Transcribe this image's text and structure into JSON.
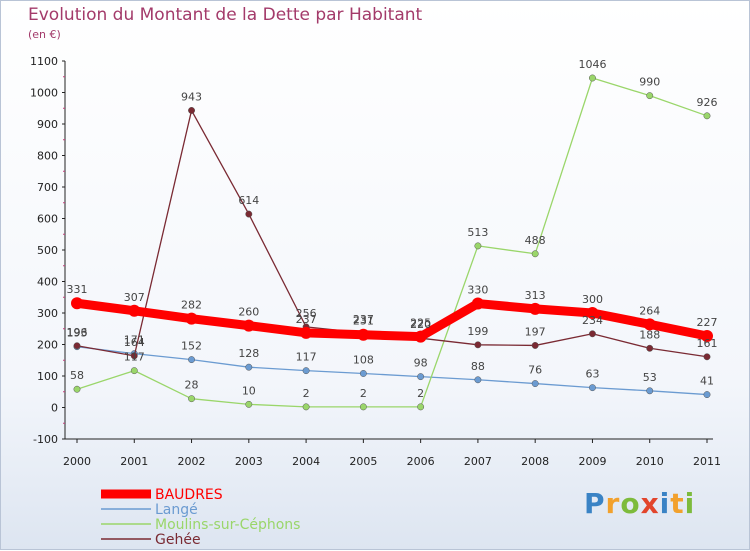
{
  "title": "Evolution du Montant de la Dette par Habitant",
  "unit": "(en €)",
  "logo": {
    "text": "Proxiti",
    "colors": [
      "#3a83c5",
      "#f2a12d",
      "#7dbb3c",
      "#e2452c",
      "#3a83c5",
      "#f2a12d",
      "#7dbb3c"
    ]
  },
  "chart_data": {
    "type": "line",
    "title": "Evolution du Montant de la Dette par Habitant",
    "ylabel": "(en €)",
    "xlabel": "",
    "categories": [
      "2000",
      "2001",
      "2002",
      "2003",
      "2004",
      "2005",
      "2006",
      "2007",
      "2008",
      "2009",
      "2010",
      "2011"
    ],
    "ylim": [
      -100,
      1100
    ],
    "yticks": [
      "-100",
      "0",
      "100",
      "200",
      "300",
      "400",
      "500",
      "600",
      "700",
      "800",
      "900",
      "1000",
      "1100"
    ],
    "grid": false,
    "legend": "bottom-left",
    "series": [
      {
        "name": "BAUDRES",
        "color": "#ff0000",
        "values": [
          331,
          307,
          282,
          260,
          237,
          231,
          225,
          330,
          313,
          300,
          264,
          227
        ],
        "labels": [
          "331",
          "307",
          "282",
          "260",
          "237",
          "231",
          "225",
          "330",
          "313",
          "300",
          "264",
          "227"
        ]
      },
      {
        "name": "Langé",
        "color": "#6b9bd1",
        "values": [
          193,
          171,
          152,
          128,
          117,
          108,
          98,
          88,
          76,
          63,
          53,
          41
        ],
        "labels": [
          "193",
          "171",
          "152",
          "128",
          "117",
          "108",
          "98",
          "88",
          "76",
          "63",
          "53",
          "41"
        ]
      },
      {
        "name": "Moulins-sur-Céphons",
        "color": "#9ad66a",
        "values": [
          58,
          117,
          28,
          10,
          2,
          2,
          2,
          513,
          488,
          1046,
          990,
          926
        ],
        "labels": [
          "58",
          "117",
          "28",
          "10",
          "2",
          "2",
          "2",
          "513",
          "488",
          "1046",
          "990",
          "926"
        ]
      },
      {
        "name": "Gehée",
        "color": "#7a2a33",
        "values": [
          196,
          164,
          943,
          614,
          256,
          237,
          220,
          199,
          197,
          234,
          188,
          161
        ],
        "labels": [
          "196",
          "164",
          "943",
          "614",
          "256",
          "237",
          "220",
          "199",
          "197",
          "234",
          "188",
          "161"
        ]
      }
    ]
  }
}
